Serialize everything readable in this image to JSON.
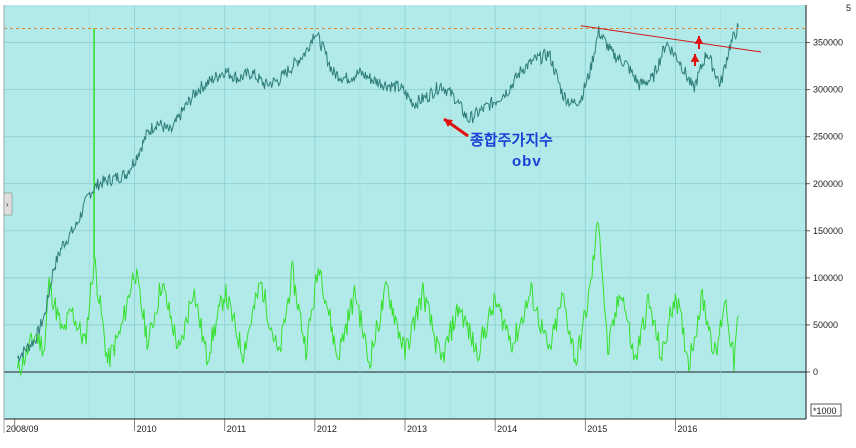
{
  "chart_data": {
    "type": "line",
    "x_tick_labels": [
      "2008/09",
      "2010",
      "2011",
      "2012",
      "2013",
      "2014",
      "2015",
      "2016"
    ],
    "y_tick_labels": [
      "350000",
      "300000",
      "250000",
      "200000",
      "150000",
      "100000",
      "50000",
      "0"
    ],
    "y_ticks": [
      350000,
      300000,
      250000,
      200000,
      150000,
      100000,
      50000,
      0
    ],
    "ylim": [
      -50000,
      390000
    ],
    "unit_label": "*1000",
    "corner_label": "5",
    "grid": true,
    "reference_line_value": 365000,
    "series": [
      {
        "color": "#2f7f78",
        "x": [
          2008.7,
          2008.9,
          2009.0,
          2009.1,
          2009.2,
          2009.35,
          2009.5,
          2009.6,
          2009.75,
          2009.9,
          2010.0,
          2010.15,
          2010.25,
          2010.4,
          2010.55,
          2010.7,
          2010.85,
          2011.0,
          2011.15,
          2011.3,
          2011.45,
          2011.6,
          2011.75,
          2011.9,
          2012.0,
          2012.1,
          2012.2,
          2012.35,
          2012.5,
          2012.65,
          2012.8,
          2012.95,
          2013.1,
          2013.25,
          2013.4,
          2013.55,
          2013.7,
          2013.85,
          2014.0,
          2014.15,
          2014.3,
          2014.45,
          2014.6,
          2014.75,
          2014.85,
          2014.95,
          2015.05,
          2015.15,
          2015.3,
          2015.45,
          2015.6,
          2015.75,
          2015.9,
          2016.05,
          2016.2,
          2016.35,
          2016.5,
          2016.6,
          2016.7
        ],
        "y": [
          15000,
          35000,
          60000,
          110000,
          135000,
          155000,
          190000,
          200000,
          205000,
          210000,
          225000,
          255000,
          265000,
          255000,
          280000,
          300000,
          310000,
          320000,
          312000,
          318000,
          305000,
          310000,
          325000,
          340000,
          362000,
          342000,
          318000,
          312000,
          318000,
          310000,
          305000,
          302000,
          285000,
          293000,
          305000,
          292000,
          268000,
          278000,
          288000,
          300000,
          322000,
          332000,
          338000,
          295000,
          285000,
          290000,
          318000,
          362000,
          338000,
          328000,
          305000,
          312000,
          350000,
          330000,
          300000,
          340000,
          305000,
          345000,
          367000
        ]
      },
      {
        "color": "#37e02c",
        "x": [
          2008.7,
          2008.8,
          2008.9,
          2009.0,
          2009.05,
          2009.2,
          2009.3,
          2009.45,
          2009.55,
          2009.7,
          2009.85,
          2010.0,
          2010.15,
          2010.3,
          2010.5,
          2010.65,
          2010.8,
          2011.0,
          2011.2,
          2011.4,
          2011.6,
          2011.75,
          2011.9,
          2012.05,
          2012.25,
          2012.45,
          2012.6,
          2012.8,
          2013.0,
          2013.2,
          2013.4,
          2013.6,
          2013.8,
          2014.0,
          2014.2,
          2014.4,
          2014.6,
          2014.75,
          2014.9,
          2015.05,
          2015.15,
          2015.25,
          2015.4,
          2015.55,
          2015.7,
          2015.85,
          2016.0,
          2016.15,
          2016.3,
          2016.45,
          2016.55,
          2016.65,
          2016.7
        ],
        "y": [
          0,
          20000,
          40000,
          25000,
          95000,
          40000,
          65000,
          30000,
          120000,
          10000,
          45000,
          110000,
          30000,
          95000,
          20000,
          90000,
          15000,
          85000,
          20000,
          95000,
          15000,
          105000,
          25000,
          115000,
          15000,
          85000,
          10000,
          90000,
          20000,
          85000,
          10000,
          70000,
          20000,
          75000,
          30000,
          85000,
          20000,
          80000,
          10000,
          85000,
          165000,
          20000,
          90000,
          10000,
          75000,
          15000,
          85000,
          10000,
          80000,
          15000,
          80000,
          10000,
          60000
        ]
      }
    ]
  },
  "annotation": {
    "line1": "종합주가지수",
    "line2": "obv"
  }
}
